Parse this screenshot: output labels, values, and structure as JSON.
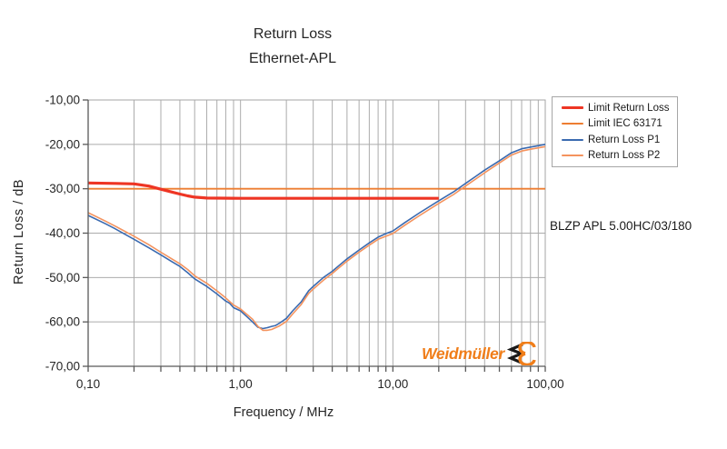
{
  "header": {
    "title_line1": "Return Loss",
    "title_line2": "Ethernet-APL"
  },
  "annotation": "BLZP APL 5.00HC/03/180",
  "brand": {
    "name": "Weidmüller",
    "color": "#F07E1A",
    "mark_black": "#1a1a1a"
  },
  "colors": {
    "gridline": "#ababab",
    "plot_border": "#a6a6a6",
    "axis_line": "#595959",
    "tick_text": "#262626",
    "legend_border": "#a6a6a6"
  },
  "chart_data": {
    "type": "line",
    "title": "Return Loss Ethernet-APL",
    "x_axis": {
      "label": "Frequency / MHz",
      "scale": "log",
      "min": 0.1,
      "max": 100,
      "ticks": [
        {
          "v": 0.1,
          "label": "0,10"
        },
        {
          "v": 1,
          "label": "1,00"
        },
        {
          "v": 10,
          "label": "10,00"
        },
        {
          "v": 100,
          "label": "100,00"
        }
      ]
    },
    "y_axis": {
      "label": "Return Loss / dB",
      "min": -70,
      "max": -10,
      "ticks": [
        {
          "v": -10,
          "label": "-10,00"
        },
        {
          "v": -20,
          "label": "-20,00"
        },
        {
          "v": -30,
          "label": "-30,00"
        },
        {
          "v": -40,
          "label": "-40,00"
        },
        {
          "v": -50,
          "label": "-50,00"
        },
        {
          "v": -60,
          "label": "-60,00"
        },
        {
          "v": -70,
          "label": "-70,00"
        }
      ]
    },
    "legend": {
      "position": "top-right"
    },
    "series": [
      {
        "name": "Limit Return Loss",
        "color": "#EE3524",
        "width": 3.2,
        "sample_height": 3,
        "points": [
          [
            0.1,
            -28.7
          ],
          [
            0.15,
            -28.8
          ],
          [
            0.2,
            -28.9
          ],
          [
            0.25,
            -29.4
          ],
          [
            0.3,
            -30.1
          ],
          [
            0.35,
            -30.7
          ],
          [
            0.4,
            -31.2
          ],
          [
            0.45,
            -31.6
          ],
          [
            0.5,
            -31.9
          ],
          [
            0.55,
            -32.0
          ],
          [
            0.6,
            -32.1
          ],
          [
            1.0,
            -32.15
          ],
          [
            5,
            -32.15
          ],
          [
            20,
            -32.15
          ]
        ]
      },
      {
        "name": "Limit IEC 63171",
        "color": "#ED7D31",
        "width": 1.8,
        "sample_height": 2,
        "points": [
          [
            0.1,
            -30
          ],
          [
            100,
            -30
          ]
        ]
      },
      {
        "name": "Return Loss P1",
        "color": "#3A6AB0",
        "width": 1.6,
        "sample_height": 2,
        "points": [
          [
            0.1,
            -36.0
          ],
          [
            0.13,
            -37.9
          ],
          [
            0.15,
            -39.0
          ],
          [
            0.2,
            -41.4
          ],
          [
            0.25,
            -43.3
          ],
          [
            0.3,
            -44.9
          ],
          [
            0.35,
            -46.3
          ],
          [
            0.4,
            -47.5
          ],
          [
            0.45,
            -48.9
          ],
          [
            0.5,
            -50.3
          ],
          [
            0.6,
            -52.0
          ],
          [
            0.7,
            -53.7
          ],
          [
            0.8,
            -55.3
          ],
          [
            0.85,
            -55.8
          ],
          [
            0.9,
            -56.8
          ],
          [
            1.0,
            -57.5
          ],
          [
            1.1,
            -58.8
          ],
          [
            1.2,
            -60.0
          ],
          [
            1.3,
            -61.2
          ],
          [
            1.4,
            -61.5
          ],
          [
            1.5,
            -61.3
          ],
          [
            1.6,
            -61.0
          ],
          [
            1.7,
            -60.8
          ],
          [
            1.8,
            -60.3
          ],
          [
            2.0,
            -59.2
          ],
          [
            2.2,
            -57.5
          ],
          [
            2.5,
            -55.5
          ],
          [
            2.8,
            -53.0
          ],
          [
            3.0,
            -52.0
          ],
          [
            3.5,
            -50.0
          ],
          [
            4.0,
            -48.6
          ],
          [
            4.5,
            -47.1
          ],
          [
            5.0,
            -45.8
          ],
          [
            6.0,
            -43.8
          ],
          [
            7.0,
            -42.2
          ],
          [
            8.0,
            -40.9
          ],
          [
            9.0,
            -40.1
          ],
          [
            10,
            -39.5
          ],
          [
            12,
            -37.6
          ],
          [
            15,
            -35.4
          ],
          [
            20,
            -32.7
          ],
          [
            25,
            -30.7
          ],
          [
            30,
            -28.8
          ],
          [
            35,
            -27.2
          ],
          [
            40,
            -25.8
          ],
          [
            50,
            -23.7
          ],
          [
            60,
            -21.9
          ],
          [
            70,
            -21.0
          ],
          [
            80,
            -20.6
          ],
          [
            90,
            -20.3
          ],
          [
            100,
            -20.0
          ]
        ]
      },
      {
        "name": "Return Loss P2",
        "color": "#F4935E",
        "width": 1.6,
        "sample_height": 2,
        "points": [
          [
            0.1,
            -35.4
          ],
          [
            0.13,
            -37.3
          ],
          [
            0.15,
            -38.4
          ],
          [
            0.2,
            -40.7
          ],
          [
            0.25,
            -42.6
          ],
          [
            0.3,
            -44.3
          ],
          [
            0.35,
            -45.7
          ],
          [
            0.4,
            -46.9
          ],
          [
            0.45,
            -48.2
          ],
          [
            0.5,
            -49.6
          ],
          [
            0.6,
            -51.3
          ],
          [
            0.7,
            -53.0
          ],
          [
            0.8,
            -54.6
          ],
          [
            0.9,
            -56.2
          ],
          [
            1.0,
            -57.1
          ],
          [
            1.1,
            -58.3
          ],
          [
            1.2,
            -59.4
          ],
          [
            1.3,
            -61.0
          ],
          [
            1.4,
            -61.9
          ],
          [
            1.5,
            -61.9
          ],
          [
            1.6,
            -61.7
          ],
          [
            1.7,
            -61.3
          ],
          [
            1.8,
            -60.9
          ],
          [
            2.0,
            -59.9
          ],
          [
            2.2,
            -58.2
          ],
          [
            2.5,
            -56.1
          ],
          [
            2.8,
            -53.6
          ],
          [
            3.0,
            -52.6
          ],
          [
            3.5,
            -50.6
          ],
          [
            4.0,
            -49.1
          ],
          [
            4.5,
            -47.6
          ],
          [
            5.0,
            -46.3
          ],
          [
            6.0,
            -44.3
          ],
          [
            7.0,
            -42.7
          ],
          [
            8.0,
            -41.4
          ],
          [
            9.0,
            -40.7
          ],
          [
            10,
            -40.1
          ],
          [
            12,
            -38.2
          ],
          [
            15,
            -36.0
          ],
          [
            20,
            -33.3
          ],
          [
            25,
            -31.3
          ],
          [
            30,
            -29.4
          ],
          [
            35,
            -27.8
          ],
          [
            40,
            -26.4
          ],
          [
            50,
            -24.2
          ],
          [
            60,
            -22.4
          ],
          [
            70,
            -21.5
          ],
          [
            80,
            -21.1
          ],
          [
            90,
            -20.8
          ],
          [
            100,
            -20.5
          ]
        ]
      }
    ]
  }
}
